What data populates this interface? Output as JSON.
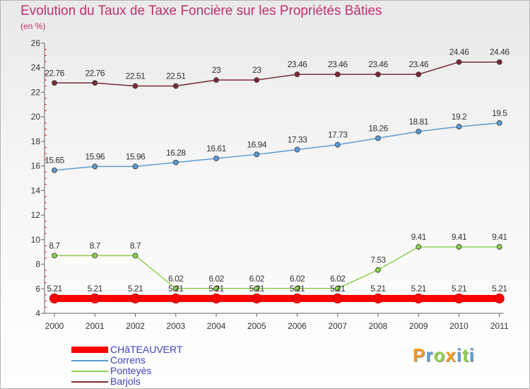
{
  "chart_data": {
    "type": "line",
    "title": "Evolution du Taux de Taxe Foncière sur les Propriétés Bâties",
    "unit_label": "(en %)",
    "xlabel": "",
    "ylabel": "(en %)",
    "ylim": [
      4,
      26
    ],
    "yticks": [
      "4",
      "6",
      "8",
      "10",
      "12",
      "14",
      "16",
      "18",
      "20",
      "22",
      "24",
      "26"
    ],
    "categories": [
      "2000",
      "2001",
      "2002",
      "2003",
      "2004",
      "2005",
      "2006",
      "2007",
      "2008",
      "2009",
      "2010",
      "2011"
    ],
    "grid": false,
    "legend_position": "bottom-left",
    "series": [
      {
        "name": "CHâTEAUVERT",
        "color": "#ff0000",
        "values": [
          5.21,
          5.21,
          5.21,
          5.21,
          5.21,
          5.21,
          5.21,
          5.21,
          5.21,
          5.21,
          5.21,
          5.21
        ],
        "labels": [
          "5.21",
          "5.21",
          "5.21",
          "5.21",
          "5.21",
          "5.21",
          "5.21",
          "5.21",
          "5.21",
          "5.21",
          "5.21",
          "5.21"
        ]
      },
      {
        "name": "Correns",
        "color": "#5b9bd5",
        "values": [
          15.65,
          15.96,
          15.96,
          16.28,
          16.61,
          16.94,
          17.33,
          17.73,
          18.26,
          18.81,
          19.2,
          19.5
        ],
        "labels": [
          "15.65",
          "15.96",
          "15.96",
          "16.28",
          "16.61",
          "16.94",
          "17.33",
          "17.73",
          "18.26",
          "18.81",
          "19.2",
          "19.5"
        ]
      },
      {
        "name": "Ponteyès",
        "color": "#8fd14f",
        "values": [
          8.7,
          8.7,
          8.7,
          6.02,
          6.02,
          6.02,
          6.02,
          6.02,
          7.53,
          9.41,
          9.41,
          9.41
        ],
        "labels": [
          "8.7",
          "8.7",
          "8.7",
          "6.02",
          "6.02",
          "6.02",
          "6.02",
          "6.02",
          "7.53",
          "9.41",
          "9.41",
          "9.41"
        ]
      },
      {
        "name": "Barjols",
        "color": "#7b2b36",
        "values": [
          22.76,
          22.76,
          22.51,
          22.51,
          23,
          23,
          23.46,
          23.46,
          23.46,
          23.46,
          24.46,
          24.46
        ],
        "labels": [
          "22.76",
          "22.76",
          "22.51",
          "22.51",
          "23",
          "23",
          "23.46",
          "23.46",
          "23.46",
          "23.46",
          "24.46",
          "24.46"
        ]
      }
    ]
  },
  "brand": {
    "letters": [
      "P",
      "r",
      "o",
      "x",
      "i",
      "t",
      "i"
    ],
    "colors": [
      "#f29a1d",
      "#5b9bd5",
      "#8fd14f",
      "#f29a1d",
      "#5b9bd5",
      "#8fd14f",
      "#5b9bd5"
    ]
  }
}
